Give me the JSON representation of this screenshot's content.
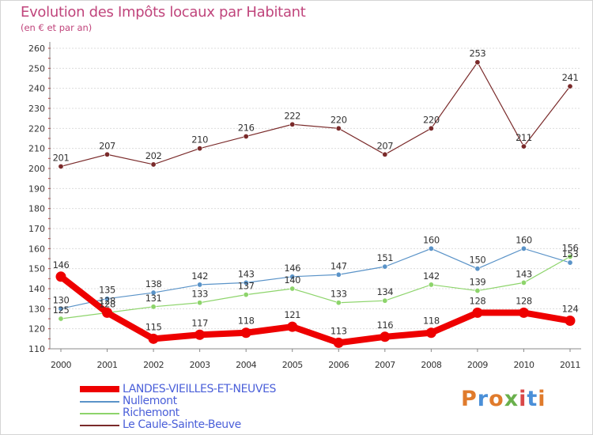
{
  "header": {
    "title": "Evolution des Impôts locaux par Habitant",
    "subtitle": "(en € et par an)"
  },
  "logo": {
    "text": "Proxiti",
    "colors": [
      "#e07b2c",
      "#4a8fd8",
      "#e07b2c",
      "#6ab04c",
      "#d94848",
      "#4a8fd8",
      "#e07b2c"
    ]
  },
  "chart_data": {
    "type": "line",
    "title": "Evolution des Impôts locaux par Habitant",
    "subtitle": "(en € et par an)",
    "xlabel": "",
    "ylabel": "",
    "x": [
      "2000",
      "2001",
      "2002",
      "2003",
      "2004",
      "2005",
      "2006",
      "2007",
      "2008",
      "2009",
      "2010",
      "2011"
    ],
    "ylim": [
      110,
      260
    ],
    "yticks": [
      110,
      120,
      130,
      140,
      150,
      160,
      170,
      180,
      190,
      200,
      210,
      220,
      230,
      240,
      250,
      260
    ],
    "grid": "horizontal",
    "legend": "bottom-left",
    "series": [
      {
        "name": "LANDES-VIEILLES-ET-NEUVES",
        "color": "#ee0000",
        "emphasis": true,
        "values": [
          146,
          128,
          115,
          117,
          118,
          121,
          113,
          116,
          118,
          128,
          128,
          124
        ],
        "labels": [
          "146",
          "128",
          "115",
          "117",
          "118",
          "121",
          "113",
          "116",
          "118",
          "128",
          "128",
          "124"
        ]
      },
      {
        "name": "Nullemont",
        "color": "#5a93c8",
        "emphasis": false,
        "values": [
          130,
          135,
          138,
          142,
          143,
          146,
          147,
          151,
          160,
          150,
          160,
          153
        ],
        "labels": [
          "130",
          "135",
          "138",
          "142",
          "143",
          "146",
          "147",
          "151",
          "160",
          "150",
          "160",
          "153"
        ]
      },
      {
        "name": "Richemont",
        "color": "#8dd46b",
        "emphasis": false,
        "values": [
          125,
          128,
          131,
          133,
          137,
          140,
          133,
          134,
          142,
          139,
          143,
          156
        ],
        "labels": [
          "125",
          "128",
          "131",
          "133",
          "137",
          "140",
          "133",
          "134",
          "142",
          "139",
          "143",
          "156"
        ]
      },
      {
        "name": "Le Caule-Sainte-Beuve",
        "color": "#7a2a2a",
        "emphasis": false,
        "values": [
          201,
          207,
          202,
          210,
          216,
          222,
          220,
          207,
          220,
          253,
          211,
          241
        ],
        "labels": [
          "201",
          "207",
          "202",
          "210",
          "216",
          "222",
          "220",
          "207",
          "220",
          "253",
          "211",
          "241"
        ]
      }
    ]
  }
}
